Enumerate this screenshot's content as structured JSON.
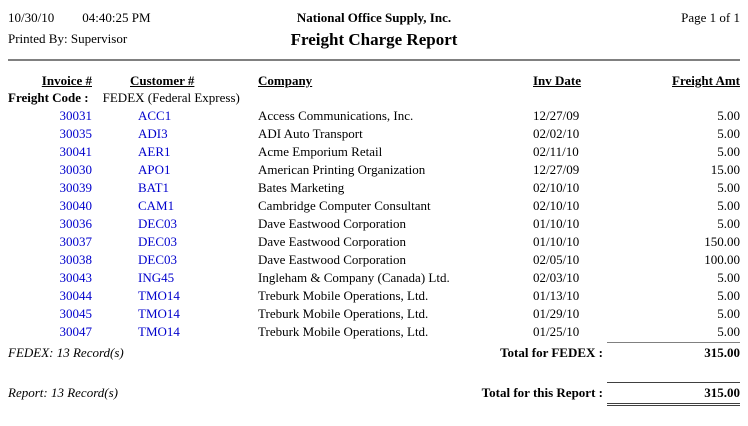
{
  "page": {
    "date": "10/30/10",
    "time": "04:40:25 PM",
    "printed_by": "Printed By: Supervisor",
    "company_name": "National Office Supply, Inc.",
    "report_title": "Freight Charge Report",
    "page_info": "Page 1 of 1"
  },
  "table": {
    "headers": {
      "invoice": "Invoice #",
      "customer": "Customer #",
      "company": "Company",
      "inv_date": "Inv Date",
      "freight_amt": "Freight Amt"
    },
    "group_label": "Freight Code :",
    "group_value": "FEDEX (Federal Express)",
    "rows": [
      {
        "invoice": "30031",
        "customer": "ACC1",
        "company": "Access Communications, Inc.",
        "inv_date": "12/27/09",
        "freight_amt": "5.00"
      },
      {
        "invoice": "30035",
        "customer": "ADI3",
        "company": "ADI Auto Transport",
        "inv_date": "02/02/10",
        "freight_amt": "5.00"
      },
      {
        "invoice": "30041",
        "customer": "AER1",
        "company": "Acme Emporium Retail",
        "inv_date": "02/11/10",
        "freight_amt": "5.00"
      },
      {
        "invoice": "30030",
        "customer": "APO1",
        "company": "American Printing Organization",
        "inv_date": "12/27/09",
        "freight_amt": "15.00"
      },
      {
        "invoice": "30039",
        "customer": "BAT1",
        "company": "Bates Marketing",
        "inv_date": "02/10/10",
        "freight_amt": "5.00"
      },
      {
        "invoice": "30040",
        "customer": "CAM1",
        "company": "Cambridge Computer Consultant",
        "inv_date": "02/10/10",
        "freight_amt": "5.00"
      },
      {
        "invoice": "30036",
        "customer": "DEC03",
        "company": "Dave Eastwood Corporation",
        "inv_date": "01/10/10",
        "freight_amt": "5.00"
      },
      {
        "invoice": "30037",
        "customer": "DEC03",
        "company": "Dave Eastwood Corporation",
        "inv_date": "01/10/10",
        "freight_amt": "150.00"
      },
      {
        "invoice": "30038",
        "customer": "DEC03",
        "company": "Dave Eastwood Corporation",
        "inv_date": "02/05/10",
        "freight_amt": "100.00"
      },
      {
        "invoice": "30043",
        "customer": "ING45",
        "company": "Ingleham & Company (Canada) Ltd.",
        "inv_date": "02/03/10",
        "freight_amt": "5.00"
      },
      {
        "invoice": "30044",
        "customer": "TMO14",
        "company": "Treburk Mobile Operations, Ltd.",
        "inv_date": "01/13/10",
        "freight_amt": "5.00"
      },
      {
        "invoice": "30045",
        "customer": "TMO14",
        "company": "Treburk Mobile Operations, Ltd.",
        "inv_date": "01/29/10",
        "freight_amt": "5.00"
      },
      {
        "invoice": "30047",
        "customer": "TMO14",
        "company": "Treburk Mobile Operations, Ltd.",
        "inv_date": "01/25/10",
        "freight_amt": "5.00"
      }
    ]
  },
  "footer": {
    "group_count": "FEDEX: 13 Record(s)",
    "group_total_label": "Total for FEDEX :",
    "group_total": "315.00",
    "report_count": "Report: 13 Record(s)",
    "report_total_label": "Total for this Report :",
    "report_total": "315.00"
  },
  "colors": {
    "link_blue": "#0000CC",
    "rule_grey": "#808080"
  }
}
